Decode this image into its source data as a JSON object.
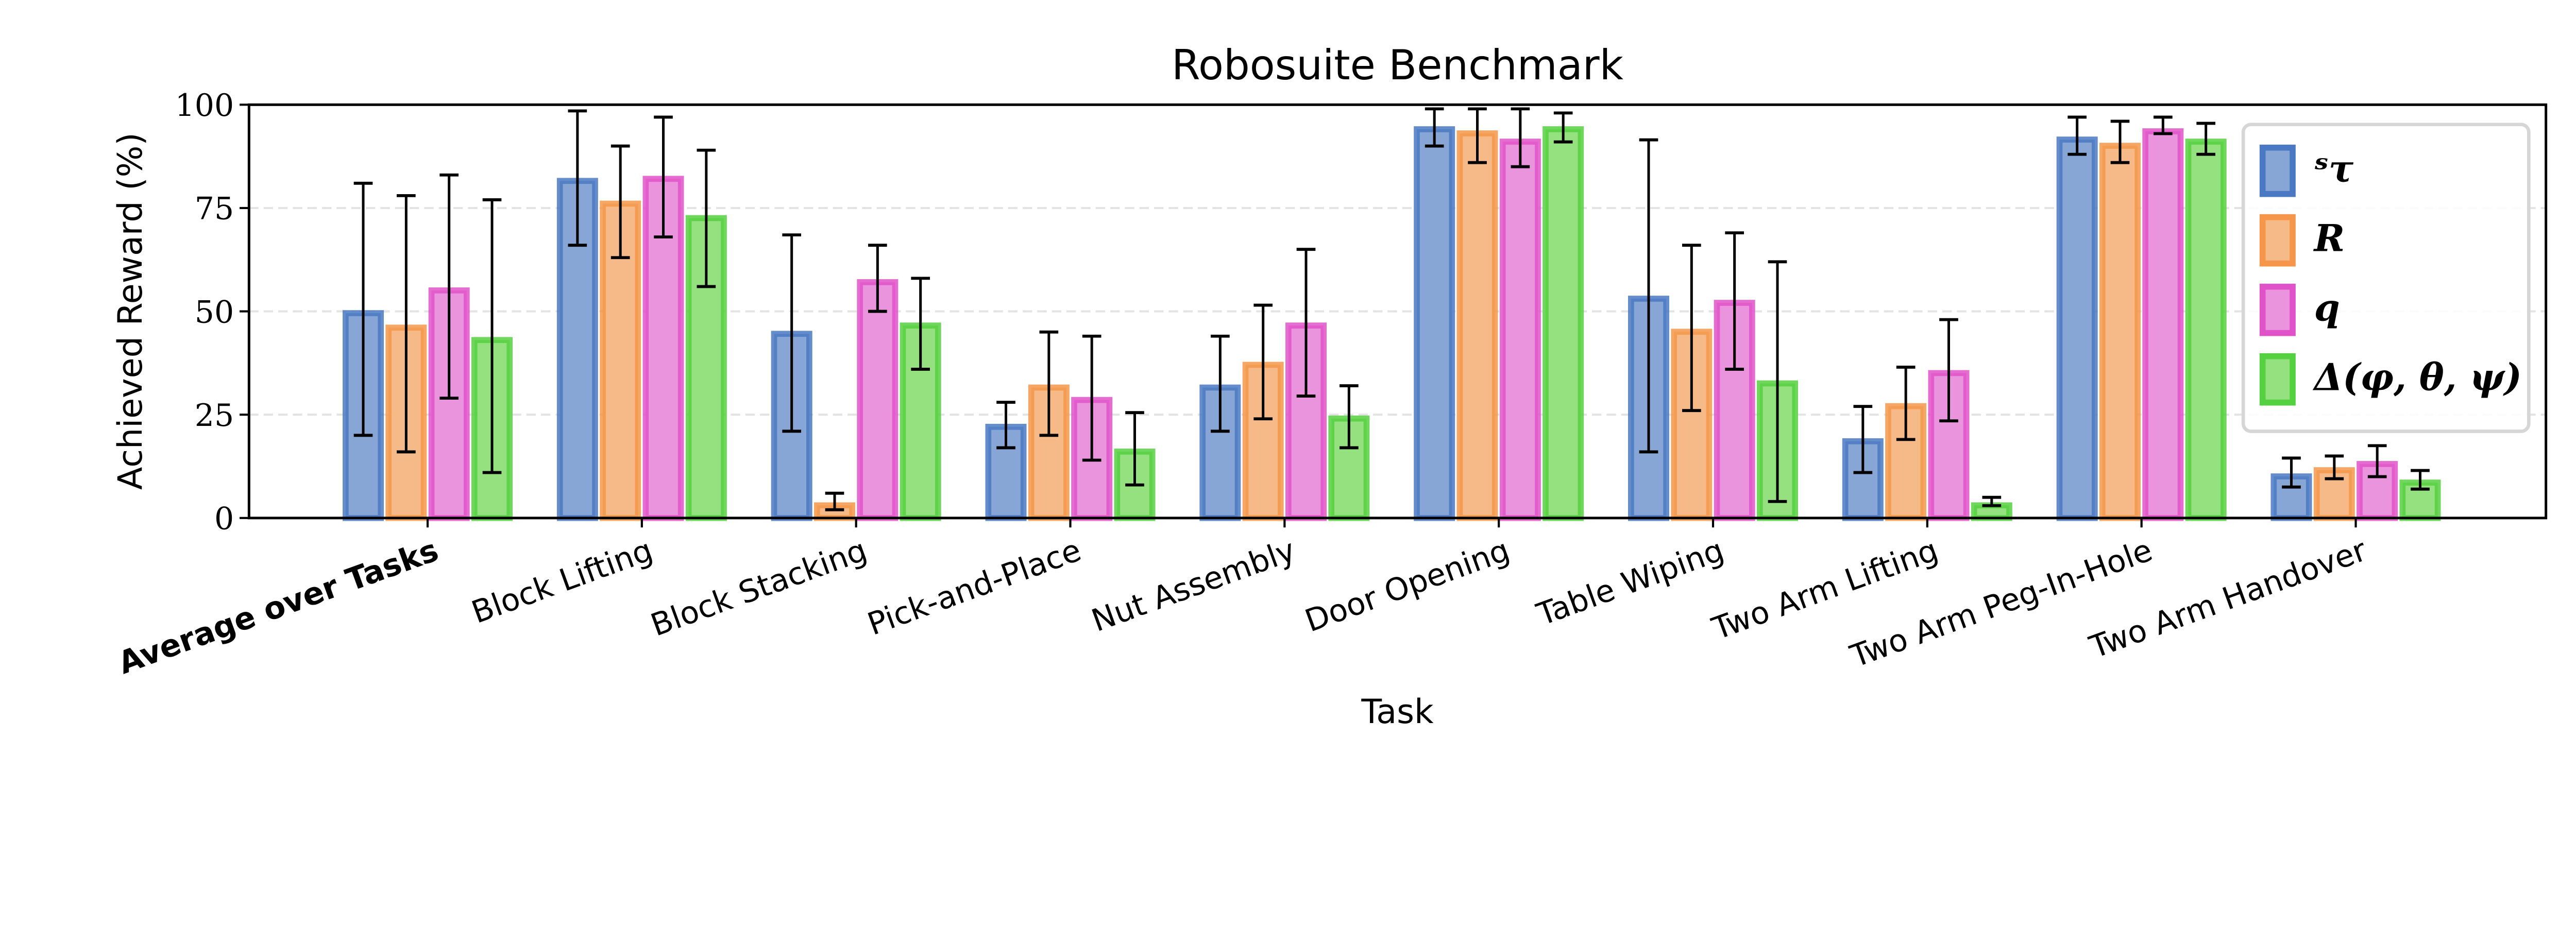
{
  "chart_data": {
    "type": "bar",
    "title": "Robosuite Benchmark",
    "xlabel": "Task",
    "ylabel": "Achieved Reward (%)",
    "ylim": [
      0,
      100
    ],
    "yticks": [
      "0",
      "25",
      "50",
      "75",
      "100"
    ],
    "grid": "y, dashed",
    "legend_position": "top-right",
    "categories": [
      "Average over Tasks",
      "Block Lifting",
      "Block Stacking",
      "Pick-and-Place",
      "Nut Assembly",
      "Door Opening",
      "Table Wiping",
      "Two Arm Lifting",
      "Two Arm Peg-In-Hole",
      "Two Arm Handover"
    ],
    "bold_categories": [
      "Average over Tasks"
    ],
    "series": [
      {
        "name": "ˢτ",
        "fill": "#88a6d5",
        "edge": "#4a78c2",
        "values": [
          50.5,
          82.5,
          45.5,
          23,
          32.5,
          95,
          54,
          19.5,
          92.5,
          11
        ],
        "err_low": [
          20,
          66,
          21,
          17,
          21,
          90,
          16,
          11,
          88,
          7.5
        ],
        "err_high": [
          81,
          98.5,
          68.5,
          28,
          44,
          99,
          91.5,
          27,
          97,
          14.5
        ]
      },
      {
        "name": "R",
        "fill": "#f6ba88",
        "edge": "#f5964a",
        "values": [
          47,
          77,
          4,
          32.5,
          38,
          94,
          46,
          28,
          91,
          12.5
        ],
        "err_low": [
          16,
          63,
          2,
          20,
          24,
          86,
          26,
          19,
          86,
          9.5
        ],
        "err_high": [
          78,
          90,
          6,
          45,
          51.5,
          99,
          66,
          36.5,
          96,
          15
        ]
      },
      {
        "name": "q",
        "fill": "#e994dd",
        "edge": "#e052c8",
        "values": [
          56,
          83,
          58,
          29.5,
          47.5,
          92,
          53,
          36,
          94.5,
          14
        ],
        "err_low": [
          29,
          68,
          50,
          14,
          29.5,
          85,
          36,
          23.5,
          93,
          10
        ],
        "err_high": [
          83,
          97,
          66,
          44,
          65,
          99,
          69,
          48,
          97,
          17.5
        ]
      },
      {
        "name": "Δ(φ, θ, ψ)",
        "fill": "#95e07f",
        "edge": "#55d040",
        "values": [
          44,
          73.5,
          47.5,
          17,
          25,
          95,
          33.5,
          4,
          92,
          9.5
        ],
        "err_low": [
          11,
          56,
          36,
          8,
          17,
          91,
          4,
          3,
          88,
          7
        ],
        "err_high": [
          77,
          89,
          58,
          25.5,
          32,
          98,
          62,
          5,
          95.5,
          11.5
        ]
      }
    ]
  }
}
